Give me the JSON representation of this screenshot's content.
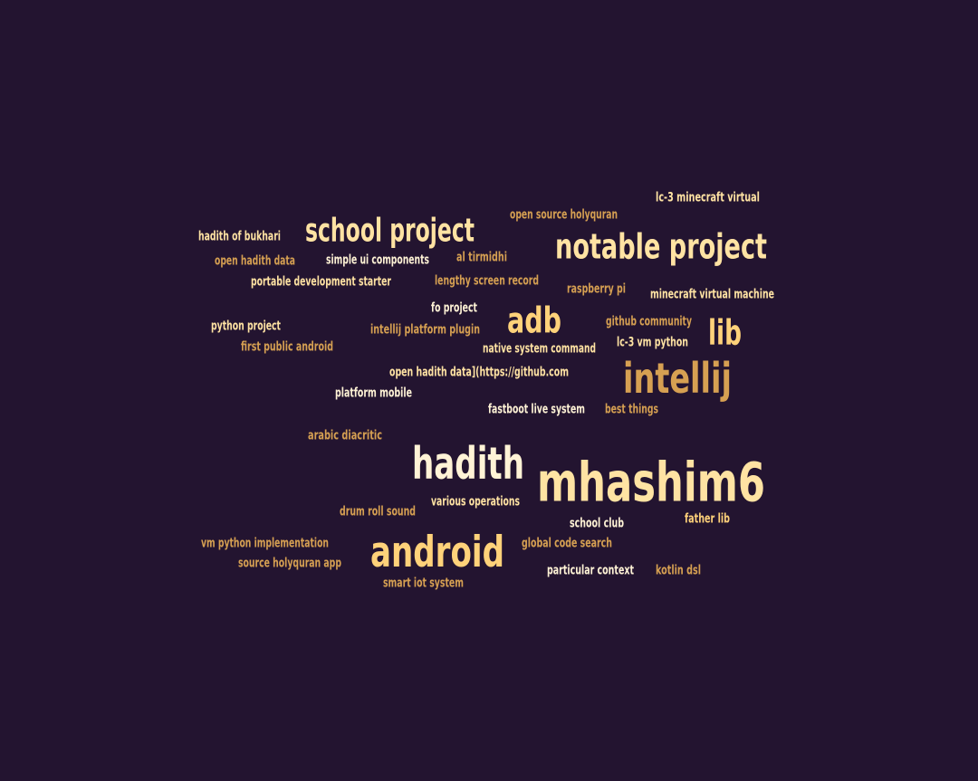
{
  "words": [
    {
      "text": "lc-3 minecraft virtual",
      "color": "#ffe3a3"
    },
    {
      "text": "open source holyquran",
      "color": "#d6a052"
    },
    {
      "text": "school project",
      "color": "#ffe3a3"
    },
    {
      "text": "hadith of bukhari",
      "color": "#ffe3a3"
    },
    {
      "text": "notable project",
      "color": "#ffe3a3"
    },
    {
      "text": "open hadith data",
      "color": "#d6a052"
    },
    {
      "text": "simple ui components",
      "color": "#fff3d6"
    },
    {
      "text": "al tirmidhi",
      "color": "#d6a052"
    },
    {
      "text": "portable development starter",
      "color": "#ffe3a3"
    },
    {
      "text": "lengthy screen record",
      "color": "#d6a052"
    },
    {
      "text": "raspberry pi",
      "color": "#d6a052"
    },
    {
      "text": "minecraft virtual machine",
      "color": "#ffe3a3"
    },
    {
      "text": "fo project",
      "color": "#fff3d6"
    },
    {
      "text": "adb",
      "color": "#ffd27a"
    },
    {
      "text": "python project",
      "color": "#ffe3a3"
    },
    {
      "text": "intellij platform plugin",
      "color": "#d6a052"
    },
    {
      "text": "github community",
      "color": "#d6a052"
    },
    {
      "text": "lib",
      "color": "#ffd27a"
    },
    {
      "text": "first public android",
      "color": "#d6a052"
    },
    {
      "text": "native system command",
      "color": "#ffe3a3"
    },
    {
      "text": "lc-3 vm python",
      "color": "#ffe3a3"
    },
    {
      "text": "open hadith data](https://github.com",
      "color": "#ffe3a3"
    },
    {
      "text": "intellij",
      "color": "#d6a052"
    },
    {
      "text": "platform mobile",
      "color": "#fff3d6"
    },
    {
      "text": "fastboot live system",
      "color": "#fff3d6"
    },
    {
      "text": "best things",
      "color": "#d6a052"
    },
    {
      "text": "arabic diacritic",
      "color": "#d6a052"
    },
    {
      "text": "hadith",
      "color": "#fff3d6"
    },
    {
      "text": "mhashim6",
      "color": "#ffe3a3"
    },
    {
      "text": "various operations",
      "color": "#ffe3a3"
    },
    {
      "text": "drum roll sound",
      "color": "#d6a052"
    },
    {
      "text": "school club",
      "color": "#fff3d6"
    },
    {
      "text": "father lib",
      "color": "#ffd27a"
    },
    {
      "text": "vm python implementation",
      "color": "#d6a052"
    },
    {
      "text": "android",
      "color": "#ffd27a"
    },
    {
      "text": "global code search",
      "color": "#d6a052"
    },
    {
      "text": "source holyquran app",
      "color": "#d6a052"
    },
    {
      "text": "particular context",
      "color": "#fff3d6"
    },
    {
      "text": "kotlin dsl",
      "color": "#d6a052"
    },
    {
      "text": "smart iot system",
      "color": "#d6a052"
    }
  ]
}
